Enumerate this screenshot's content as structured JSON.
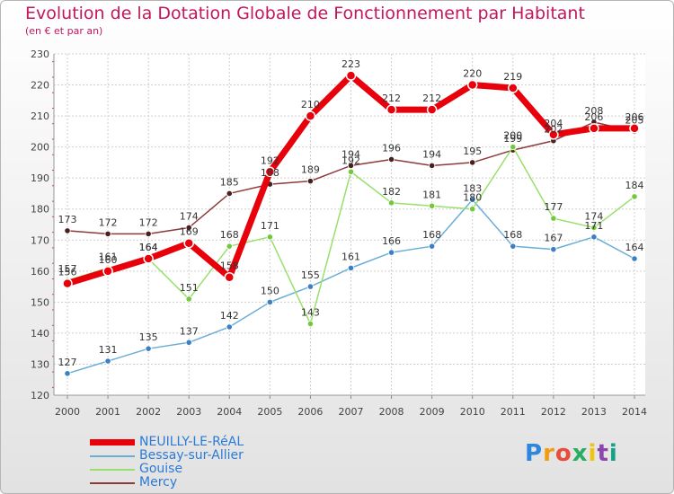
{
  "title": "Evolution de la Dotation Globale de Fonctionnement par Habitant",
  "subtitle": "(en € et par an)",
  "logo": {
    "letters": [
      "P",
      "r",
      "o",
      "x",
      "i",
      "t",
      "i"
    ],
    "colors": [
      "#2e86de",
      "#f39c12",
      "#e74c3c",
      "#27ae60",
      "#f1c40f",
      "#8e44ad",
      "#16a085"
    ]
  },
  "chart_data": {
    "type": "line",
    "title": "Evolution de la Dotation Globale de Fonctionnement par Habitant",
    "subtitle": "(en € et par an)",
    "categories": [
      "2000",
      "2001",
      "2002",
      "2003",
      "2004",
      "2005",
      "2006",
      "2007",
      "2008",
      "2009",
      "2010",
      "2011",
      "2012",
      "2013",
      "2014"
    ],
    "ylim": [
      120,
      230
    ],
    "yticks": [
      120,
      130,
      140,
      150,
      160,
      170,
      180,
      190,
      200,
      210,
      220,
      230
    ],
    "grid": true,
    "legend_position": "bottom-left",
    "series": [
      {
        "name": "NEUILLY-LE-RéAL",
        "color": "#e8000b",
        "marker": "#e8000b",
        "width": 7,
        "r": 5,
        "values": [
          156,
          160,
          164,
          169,
          158,
          192,
          210,
          223,
          212,
          212,
          220,
          219,
          204,
          206,
          206
        ],
        "labels": [
          "156",
          "160",
          "164",
          "169",
          "158",
          "192",
          "210",
          "223",
          "212",
          "212",
          "220",
          "219",
          "204",
          "206",
          "206"
        ]
      },
      {
        "name": "Bessay-sur-Allier",
        "color": "#6baed6",
        "marker": "#3d7fc4",
        "width": 1.5,
        "r": 3.2,
        "values": [
          127,
          131,
          135,
          137,
          142,
          150,
          155,
          161,
          166,
          168,
          183,
          168,
          167,
          171,
          164
        ],
        "labels": [
          "127",
          "131",
          "135",
          "137",
          "142",
          "150",
          "155",
          "161",
          "166",
          "168",
          "183",
          "168",
          "167",
          "171",
          "164"
        ]
      },
      {
        "name": "Gouise",
        "color": "#98e06b",
        "marker": "#74c83c",
        "width": 1.5,
        "r": 3.2,
        "values": [
          157,
          161,
          164,
          151,
          168,
          171,
          143,
          192,
          182,
          181,
          180,
          200,
          177,
          174,
          184
        ],
        "labels": [
          "157",
          "161",
          "164",
          "151",
          "168",
          "171",
          "143",
          "192",
          "182",
          "181",
          "180",
          "200",
          "177",
          "174",
          "184"
        ]
      },
      {
        "name": "Mercy",
        "color": "#8c3b3b",
        "marker": "#4a1f1f",
        "width": 1.5,
        "r": 3.2,
        "values": [
          173,
          172,
          172,
          174,
          185,
          188,
          189,
          194,
          196,
          194,
          195,
          199,
          202,
          208,
          205
        ],
        "labels": [
          "173",
          "172",
          "172",
          "174",
          "185",
          "188",
          "189",
          "194",
          "196",
          "194",
          "195",
          "199",
          "202",
          "208",
          "205"
        ]
      }
    ]
  }
}
